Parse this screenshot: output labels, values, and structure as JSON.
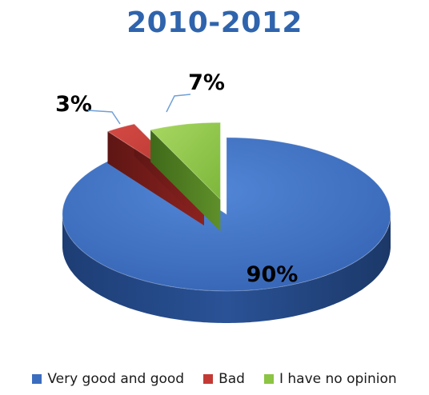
{
  "chart_data": {
    "type": "pie",
    "title": "2010-2012",
    "categories": [
      "Very good and good",
      "Bad",
      "I have no opinion"
    ],
    "values": [
      90,
      3,
      7
    ],
    "labels": [
      "90%",
      "3%",
      "7%"
    ],
    "colors": [
      "#3b6dbf",
      "#c33a35",
      "#8cc444"
    ],
    "legend_position": "bottom",
    "style": "3d-exploded"
  }
}
